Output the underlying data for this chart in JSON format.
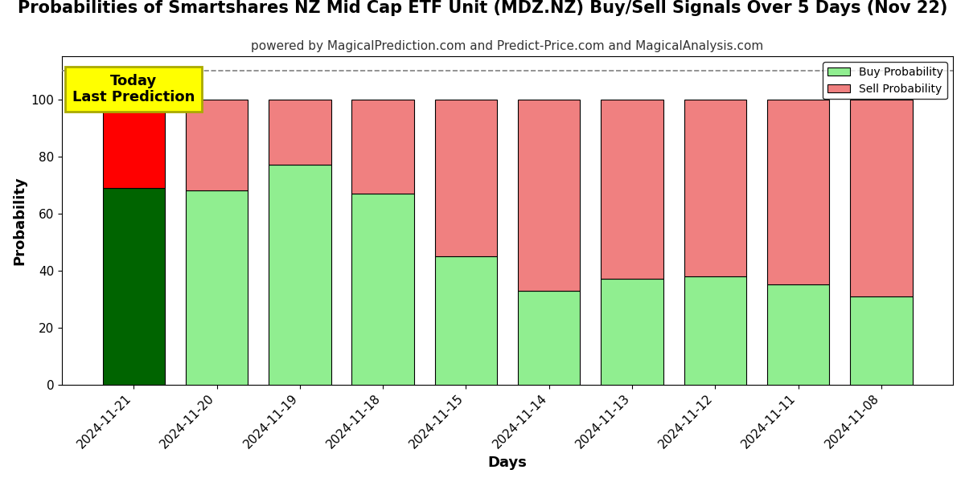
{
  "title": "Probabilities of Smartshares NZ Mid Cap ETF Unit (MDZ.NZ) Buy/Sell Signals Over 5 Days (Nov 22)",
  "subtitle": "powered by MagicalPrediction.com and Predict-Price.com and MagicalAnalysis.com",
  "xlabel": "Days",
  "ylabel": "Probability",
  "categories": [
    "2024-11-21",
    "2024-11-20",
    "2024-11-19",
    "2024-11-18",
    "2024-11-15",
    "2024-11-14",
    "2024-11-13",
    "2024-11-12",
    "2024-11-11",
    "2024-11-08"
  ],
  "buy_values": [
    69,
    68,
    77,
    67,
    45,
    33,
    37,
    38,
    35,
    31
  ],
  "sell_values": [
    31,
    32,
    23,
    33,
    55,
    67,
    63,
    62,
    65,
    69
  ],
  "buy_colors_bar": [
    "#006400",
    "#90EE90",
    "#90EE90",
    "#90EE90",
    "#90EE90",
    "#90EE90",
    "#90EE90",
    "#90EE90",
    "#90EE90",
    "#90EE90"
  ],
  "sell_colors_bar": [
    "#FF0000",
    "#F08080",
    "#F08080",
    "#F08080",
    "#F08080",
    "#F08080",
    "#F08080",
    "#F08080",
    "#F08080",
    "#F08080"
  ],
  "legend_buy_color": "#90EE90",
  "legend_sell_color": "#F08080",
  "annotation_text": "Today\nLast Prediction",
  "annotation_bg": "#FFFF00",
  "dashed_line_y": 110,
  "ylim": [
    0,
    115
  ],
  "yticks": [
    0,
    20,
    40,
    60,
    80,
    100
  ],
  "grid_color": "#FFFFFF",
  "plot_bg": "#FFFFFF",
  "fig_bg": "#FFFFFF",
  "title_fontsize": 15,
  "subtitle_fontsize": 11,
  "axis_label_fontsize": 13,
  "tick_fontsize": 11,
  "bar_edge_color": "#000000",
  "bar_width": 0.75
}
